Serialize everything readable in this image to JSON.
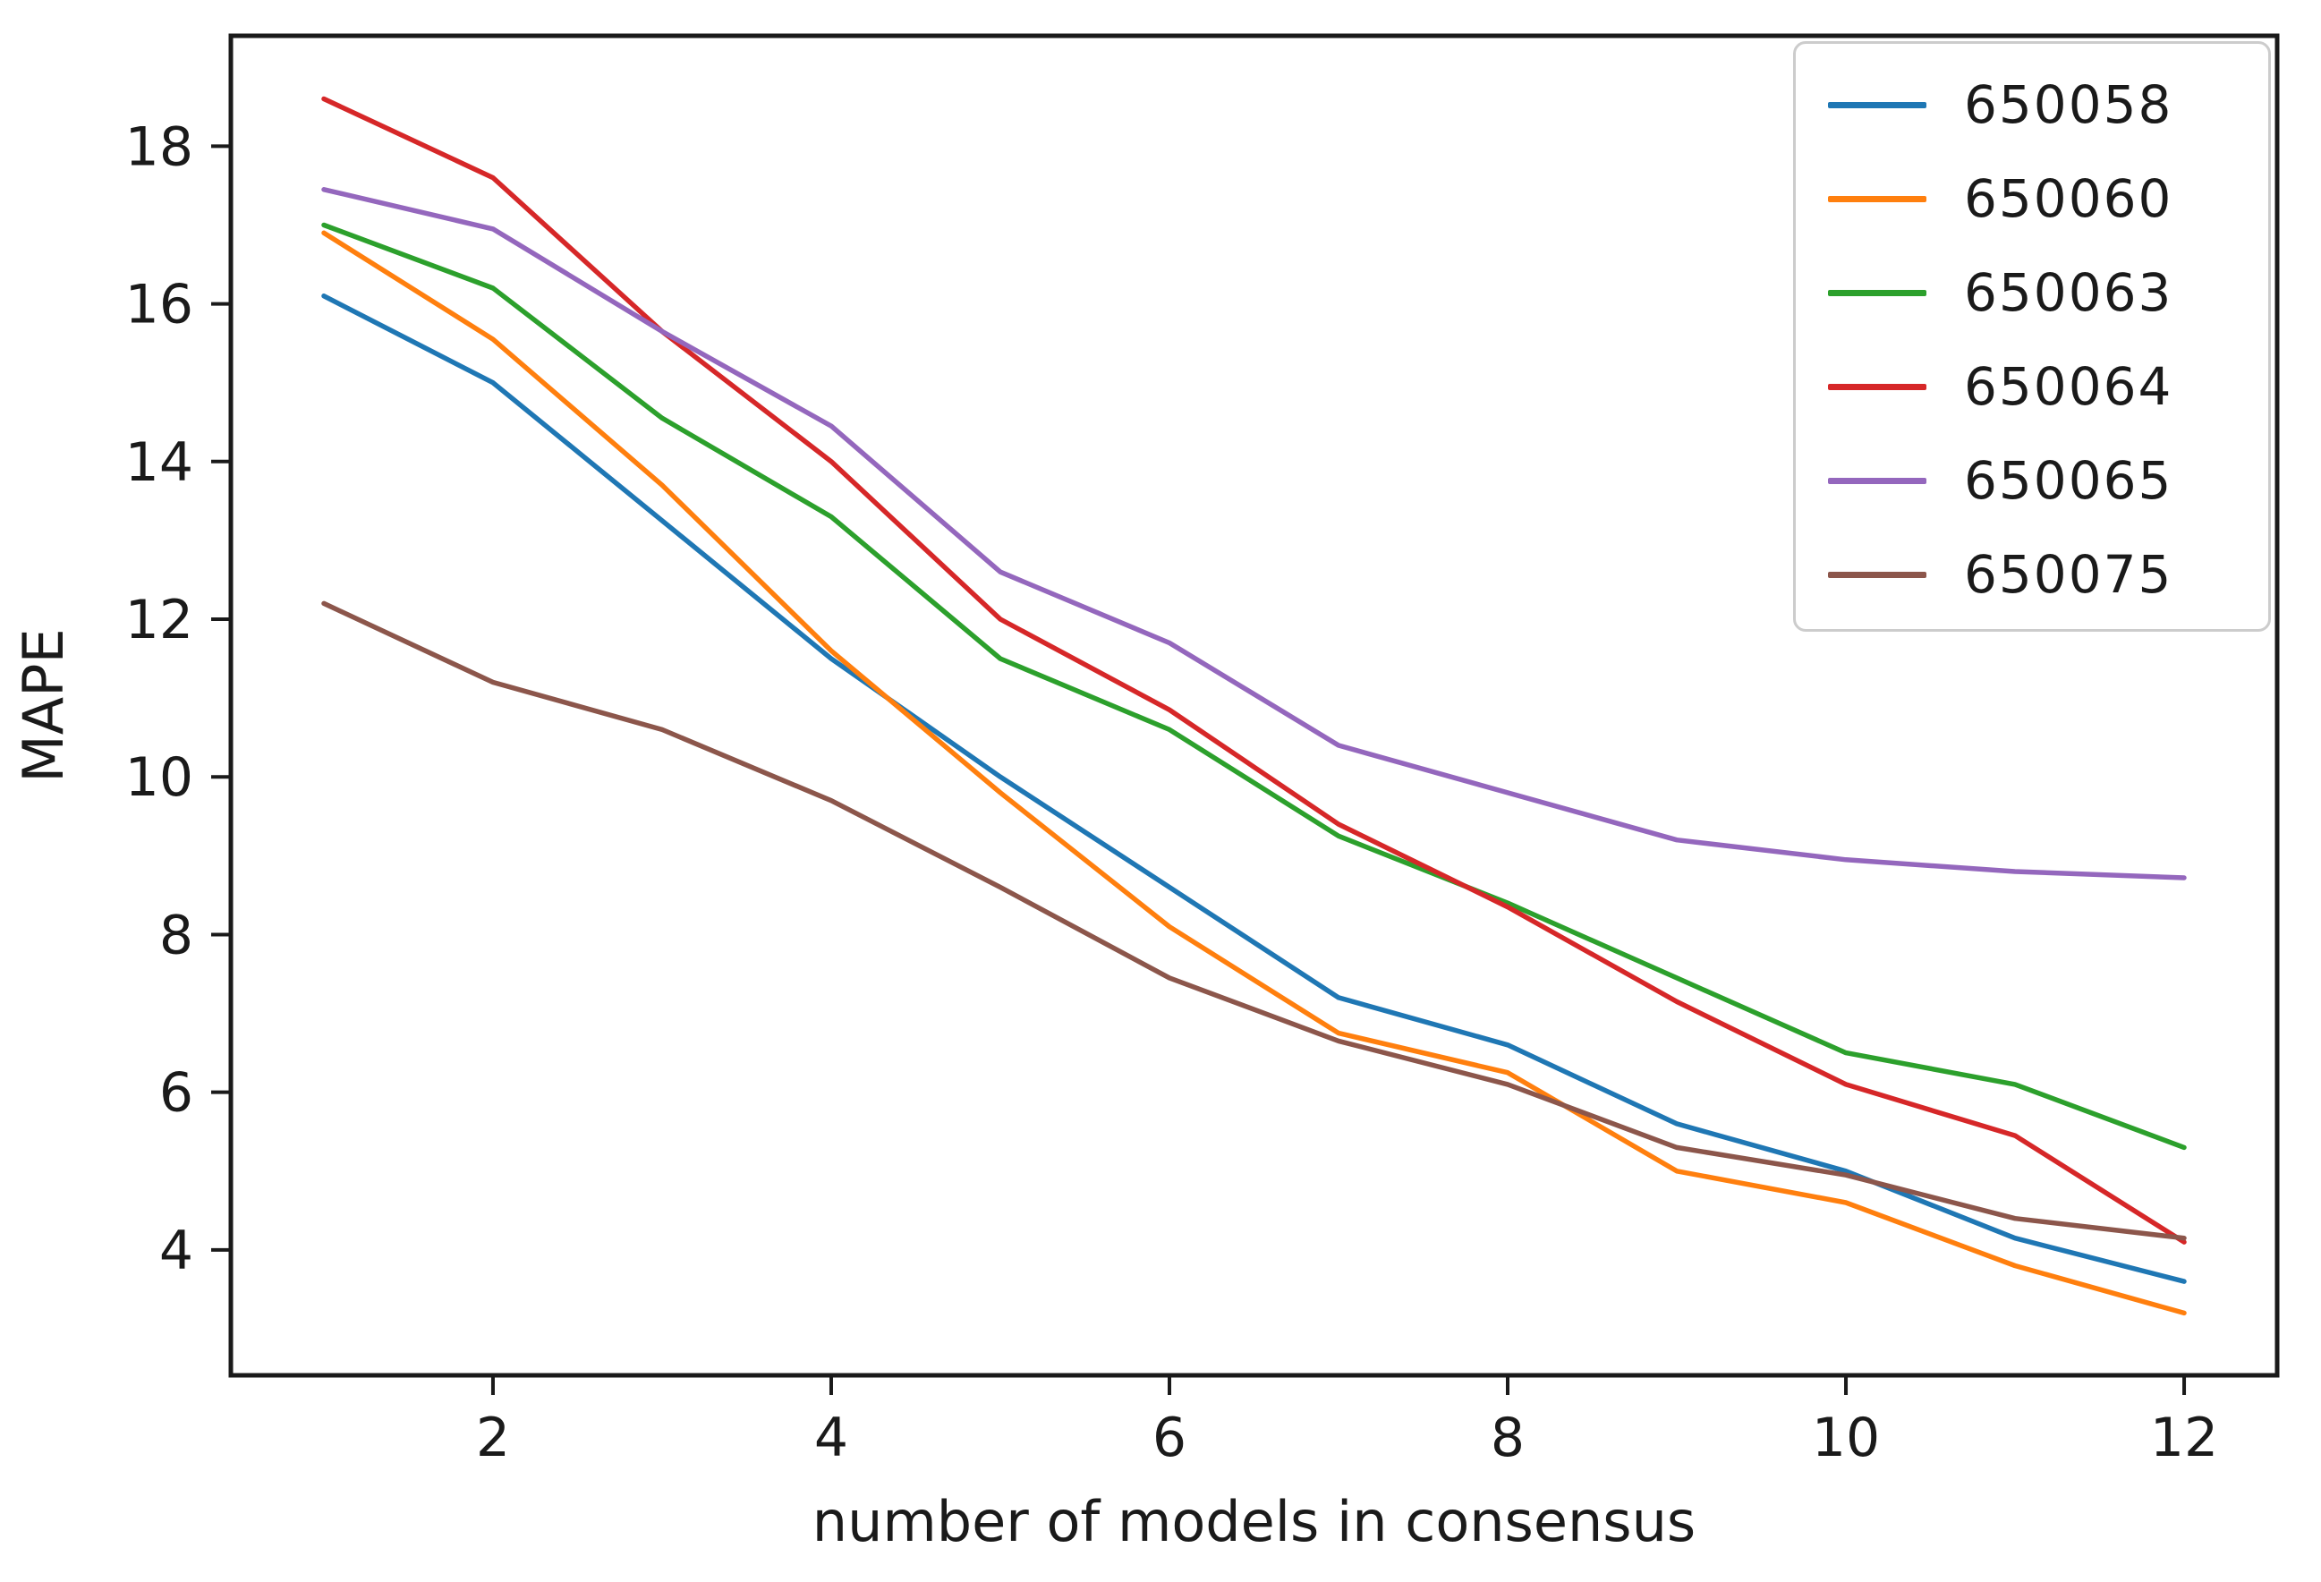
{
  "figure": {
    "background": "#ffffff",
    "text_color": "#1a1a1a",
    "spine_color": "#1a1a1a"
  },
  "chart_data": {
    "type": "line",
    "title": "",
    "xlabel": "number of models in consensus",
    "ylabel": "MAPE",
    "x": [
      1,
      2,
      3,
      4,
      5,
      6,
      7,
      8,
      9,
      10,
      11,
      12
    ],
    "xticks": [
      2,
      4,
      6,
      8,
      10,
      12
    ],
    "yticks": [
      4,
      6,
      8,
      10,
      12,
      14,
      16,
      18
    ],
    "xlim": [
      0.45,
      12.55
    ],
    "ylim": [
      2.41,
      19.4
    ],
    "grid": false,
    "legend_position": "upper right",
    "series": [
      {
        "name": "650058",
        "color": "#1f77b4",
        "values": [
          16.1,
          15.0,
          13.25,
          11.5,
          10.0,
          8.6,
          7.2,
          6.6,
          5.6,
          5.0,
          4.15,
          3.6
        ]
      },
      {
        "name": "650060",
        "color": "#ff7f0e",
        "values": [
          16.9,
          15.55,
          13.7,
          11.6,
          9.8,
          8.1,
          6.75,
          6.25,
          5.0,
          4.6,
          3.8,
          3.2
        ]
      },
      {
        "name": "650063",
        "color": "#2ca02c",
        "values": [
          17.0,
          16.2,
          14.55,
          13.3,
          11.5,
          10.6,
          9.25,
          8.4,
          7.45,
          6.5,
          6.1,
          5.3
        ]
      },
      {
        "name": "650064",
        "color": "#d62728",
        "values": [
          18.6,
          17.6,
          15.65,
          14.0,
          12.0,
          10.85,
          9.4,
          8.35,
          7.15,
          6.1,
          5.45,
          4.1
        ]
      },
      {
        "name": "650065",
        "color": "#9467bd",
        "values": [
          17.45,
          16.95,
          15.65,
          14.45,
          12.6,
          11.7,
          10.4,
          9.8,
          9.2,
          8.95,
          8.8,
          8.72
        ]
      },
      {
        "name": "650075",
        "color": "#8c564b",
        "values": [
          12.2,
          11.2,
          10.6,
          9.7,
          8.6,
          7.45,
          6.65,
          6.1,
          5.3,
          4.95,
          4.4,
          4.15
        ]
      }
    ]
  }
}
